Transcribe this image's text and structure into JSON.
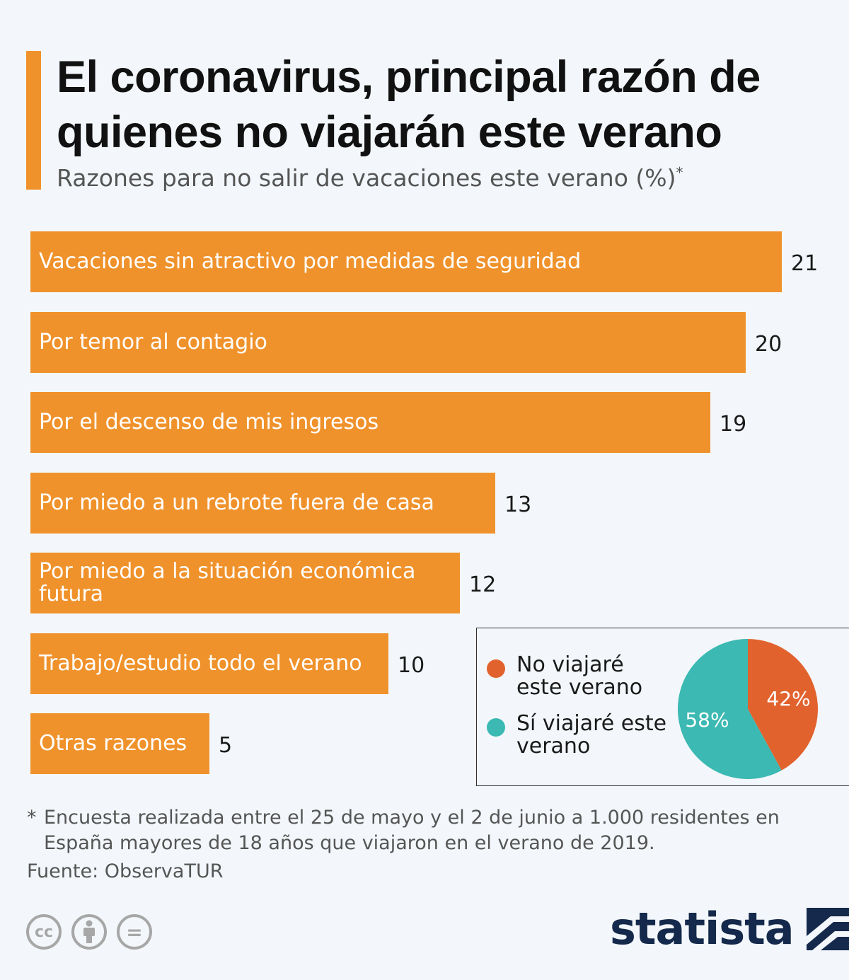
{
  "header": {
    "title": "El coronavirus, principal razón de quienes no viajarán este verano",
    "subtitle": "Razones para no salir de vacaciones este verano (%)",
    "subtitle_mark": "*"
  },
  "chart_data": [
    {
      "type": "bar",
      "orientation": "horizontal",
      "title": "El coronavirus, principal razón de quienes no viajarán este verano",
      "subtitle": "Razones para no salir de vacaciones este verano (%)*",
      "categories": [
        "Vacaciones sin atractivo por medidas de seguridad",
        "Por temor al contagio",
        "Por el descenso de mis ingresos",
        "Por miedo a un rebrote fuera de casa",
        "Por miedo a la situación económica futura",
        "Trabajo/estudio todo el verano",
        "Otras razones"
      ],
      "values": [
        21,
        20,
        19,
        13,
        12,
        10,
        5
      ],
      "value_labels": [
        "21",
        "20",
        "19",
        "13",
        "12",
        "10",
        "5"
      ],
      "xlim": [
        0,
        21
      ],
      "grid": false,
      "bar_color": "#f0922b"
    },
    {
      "type": "pie",
      "labels": [
        "No viajaré este verano",
        "Sí viajaré este verano"
      ],
      "values": [
        42,
        58
      ],
      "value_labels": [
        "42%",
        "58%"
      ],
      "colors": [
        "#e2622e",
        "#3bb9b2"
      ],
      "legend_position": "left"
    }
  ],
  "footnote": {
    "mark": "*",
    "text": "Encuesta realizada entre el 25 de mayo y el 2 de junio a 1.000 residentes en España mayores de 18 años que viajaron en el verano de 2019."
  },
  "source": "Fuente: ObservaTUR",
  "license_icons": [
    "creative-commons-icon",
    "attribution-icon",
    "no-derivatives-icon"
  ],
  "license_glyphs": [
    "cc",
    "="
  ],
  "brand": {
    "name": "statista",
    "color": "#14294b"
  }
}
